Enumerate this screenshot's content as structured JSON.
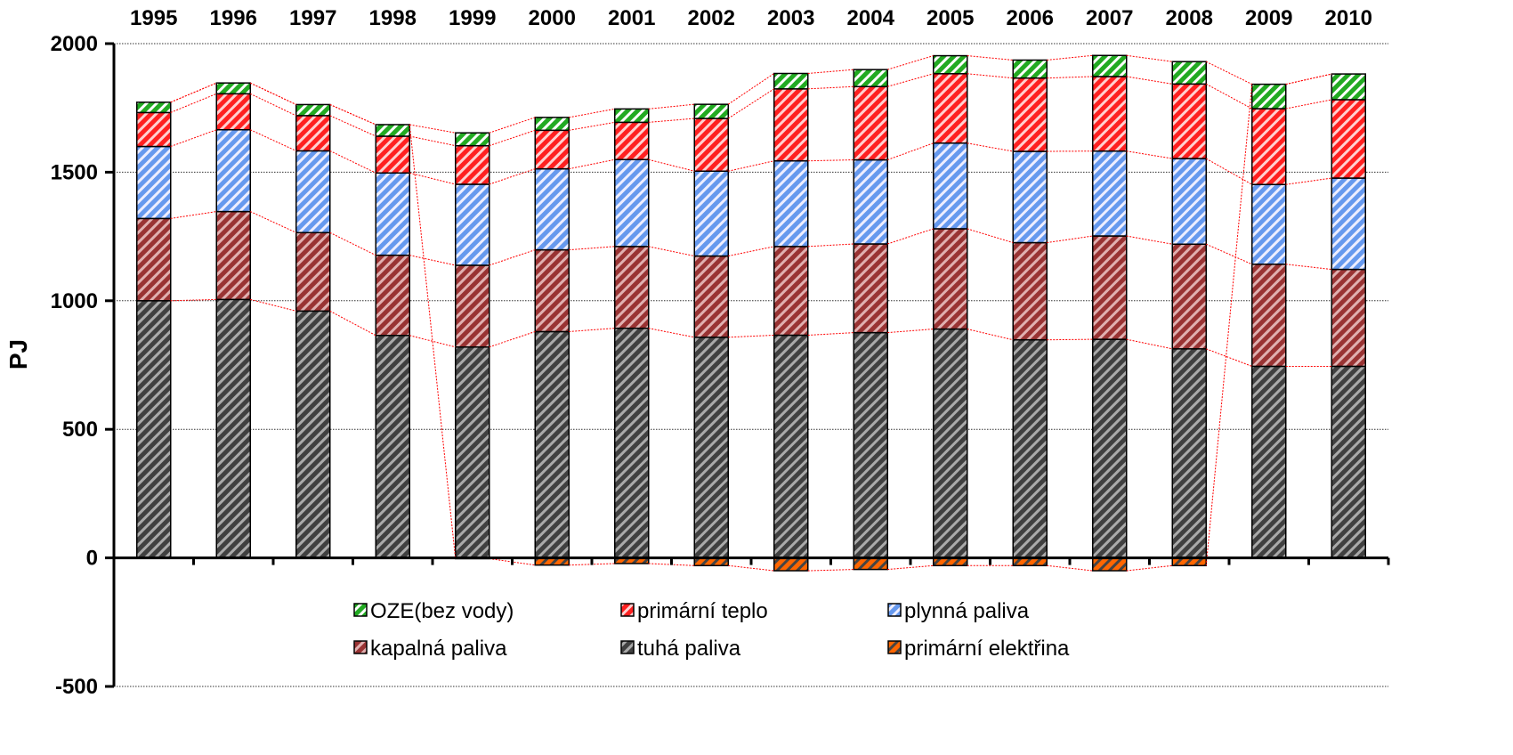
{
  "chart_data": {
    "type": "bar",
    "stacked": true,
    "categories": [
      "1995",
      "1996",
      "1997",
      "1998",
      "1999",
      "2000",
      "2001",
      "2002",
      "2003",
      "2004",
      "2005",
      "2006",
      "2007",
      "2008",
      "2009",
      "2010"
    ],
    "ylabel": "PJ",
    "ylim": [
      -500,
      2000
    ],
    "yticks": [
      2000,
      1500,
      1000,
      500,
      0,
      -500
    ],
    "grid": true,
    "category_axis_position": "top",
    "connector_lines": true,
    "legend_position": "bottom-center",
    "series": [
      {
        "name": "tuhá paliva",
        "color": "#404040",
        "stripe": "#aaaaaa",
        "values": [
          1000,
          1005,
          960,
          865,
          820,
          880,
          893,
          858,
          866,
          876,
          890,
          848,
          850,
          813,
          745,
          745
        ]
      },
      {
        "name": "kapalná paliva",
        "color": "#993333",
        "stripe": "#e0b0b0",
        "values": [
          320,
          342,
          305,
          312,
          318,
          318,
          318,
          316,
          345,
          345,
          390,
          378,
          402,
          407,
          397,
          377
        ]
      },
      {
        "name": "plynná paliva",
        "color": "#6699ee",
        "stripe": "#eeeeff",
        "values": [
          280,
          318,
          318,
          320,
          315,
          315,
          338,
          330,
          333,
          327,
          333,
          355,
          330,
          333,
          310,
          355
        ]
      },
      {
        "name": "primární teplo",
        "color": "#ff2020",
        "stripe": "#ffd0d0",
        "values": [
          132,
          140,
          137,
          143,
          150,
          150,
          145,
          205,
          280,
          285,
          270,
          285,
          290,
          290,
          295,
          305
        ]
      },
      {
        "name": "OZE(bez vody)",
        "color": "#22aa22",
        "stripe": "#ffffff",
        "values": [
          40,
          42,
          43,
          45,
          50,
          50,
          52,
          55,
          60,
          66,
          70,
          70,
          82,
          87,
          95,
          100
        ]
      },
      {
        "name": "primární elektřina",
        "color": "#ff6600",
        "stripe": "#444444",
        "values": [
          0,
          0,
          0,
          0,
          -3,
          -28,
          -22,
          -30,
          -50,
          -45,
          -30,
          -30,
          -50,
          -30,
          0,
          0
        ]
      }
    ],
    "legend_order": [
      "OZE(bez vody)",
      "primární teplo",
      "plynná paliva",
      "kapalná paliva",
      "tuhá paliva",
      "primární elektřina"
    ]
  }
}
